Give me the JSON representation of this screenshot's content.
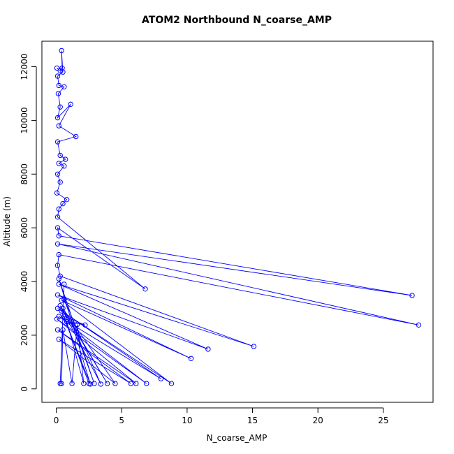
{
  "chart_data": {
    "type": "scatter",
    "title": "ATOM2 Northbound N_coarse_AMP",
    "xlabel": "N_coarse_AMP",
    "ylabel": "Altitude (m)",
    "xlim": [
      -1.1,
      28.8
    ],
    "ylim": [
      -500,
      12950
    ],
    "xticks": [
      0,
      5,
      10,
      15,
      20,
      25
    ],
    "yticks": [
      0,
      2000,
      4000,
      6000,
      8000,
      10000,
      12000
    ],
    "grid": false,
    "series_color": "#0000ff",
    "marker": "open-circle",
    "connect_points": true,
    "points": [
      {
        "x": 0.05,
        "y": 11950
      },
      {
        "x": 0.3,
        "y": 11850
      },
      {
        "x": 0.45,
        "y": 11950
      },
      {
        "x": 0.4,
        "y": 12600
      },
      {
        "x": 0.5,
        "y": 11800
      },
      {
        "x": 0.1,
        "y": 11650
      },
      {
        "x": 0.2,
        "y": 11300
      },
      {
        "x": 0.6,
        "y": 11250
      },
      {
        "x": 0.15,
        "y": 11000
      },
      {
        "x": 0.3,
        "y": 10500
      },
      {
        "x": 0.1,
        "y": 10100
      },
      {
        "x": 1.1,
        "y": 10600
      },
      {
        "x": 0.2,
        "y": 9800
      },
      {
        "x": 1.5,
        "y": 9400
      },
      {
        "x": 0.1,
        "y": 9200
      },
      {
        "x": 0.3,
        "y": 8700
      },
      {
        "x": 0.7,
        "y": 8550
      },
      {
        "x": 0.2,
        "y": 8400
      },
      {
        "x": 0.6,
        "y": 8300
      },
      {
        "x": 0.1,
        "y": 8000
      },
      {
        "x": 0.3,
        "y": 7700
      },
      {
        "x": 0.05,
        "y": 7300
      },
      {
        "x": 0.8,
        "y": 7050
      },
      {
        "x": 0.5,
        "y": 6900
      },
      {
        "x": 0.2,
        "y": 6700
      },
      {
        "x": 0.1,
        "y": 6400
      },
      {
        "x": 6.8,
        "y": 3720
      },
      {
        "x": 0.1,
        "y": 6000
      },
      {
        "x": 0.2,
        "y": 5700
      },
      {
        "x": 27.2,
        "y": 3480
      },
      {
        "x": 0.1,
        "y": 5400
      },
      {
        "x": 27.7,
        "y": 2380
      },
      {
        "x": 0.2,
        "y": 5000
      },
      {
        "x": 0.1,
        "y": 4600
      },
      {
        "x": 0.3,
        "y": 4200
      },
      {
        "x": 15.1,
        "y": 1580
      },
      {
        "x": 0.2,
        "y": 3900
      },
      {
        "x": 11.6,
        "y": 1480
      },
      {
        "x": 0.1,
        "y": 3500
      },
      {
        "x": 10.3,
        "y": 1130
      },
      {
        "x": 0.4,
        "y": 3300
      },
      {
        "x": 8.8,
        "y": 200
      },
      {
        "x": 0.1,
        "y": 3000
      },
      {
        "x": 8.0,
        "y": 380
      },
      {
        "x": 0.2,
        "y": 2700
      },
      {
        "x": 6.9,
        "y": 200
      },
      {
        "x": 0.05,
        "y": 2600
      },
      {
        "x": 6.1,
        "y": 200
      },
      {
        "x": 0.1,
        "y": 2200
      },
      {
        "x": 5.7,
        "y": 200
      },
      {
        "x": 0.2,
        "y": 1850
      },
      {
        "x": 4.5,
        "y": 200
      },
      {
        "x": 0.5,
        "y": 3000
      },
      {
        "x": 3.9,
        "y": 200
      },
      {
        "x": 0.3,
        "y": 3100
      },
      {
        "x": 3.4,
        "y": 180
      },
      {
        "x": 0.6,
        "y": 3350
      },
      {
        "x": 2.9,
        "y": 200
      },
      {
        "x": 0.2,
        "y": 4100
      },
      {
        "x": 2.6,
        "y": 180
      },
      {
        "x": 0.4,
        "y": 2900
      },
      {
        "x": 2.5,
        "y": 200
      },
      {
        "x": 0.6,
        "y": 2700
      },
      {
        "x": 2.2,
        "y": 2380
      },
      {
        "x": 0.8,
        "y": 2500
      },
      {
        "x": 2.1,
        "y": 200
      },
      {
        "x": 1.6,
        "y": 2400
      },
      {
        "x": 1.2,
        "y": 200
      },
      {
        "x": 0.5,
        "y": 2200
      },
      {
        "x": 0.4,
        "y": 200
      },
      {
        "x": 0.3,
        "y": 200
      },
      {
        "x": 0.6,
        "y": 3900
      }
    ]
  }
}
